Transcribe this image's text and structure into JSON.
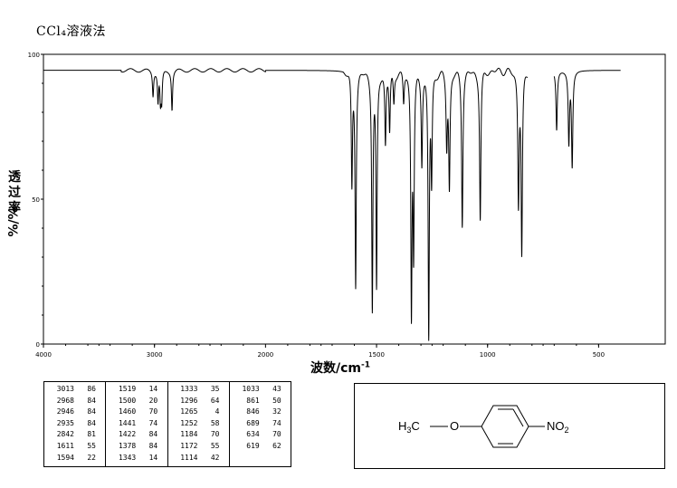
{
  "title": "CCl₄溶液法",
  "ylabel_chars": [
    "透",
    "过",
    "率"
  ],
  "ylabel_unit": "%",
  "xlabel_main": "波数/cm",
  "xlabel_sup": "-1",
  "chart_data": {
    "type": "line",
    "title": "CCl₄溶液法",
    "xlabel": "波数/cm-1",
    "ylabel": "透过率 %",
    "xlim": [
      4000,
      400
    ],
    "ylim": [
      0,
      100
    ],
    "x_ticks": [
      4000,
      3000,
      2000,
      1500,
      1000,
      500
    ],
    "y_ticks": [
      0,
      50,
      100
    ],
    "x_tick_labels": [
      "4000",
      "3000",
      "2000",
      "1500",
      "1000",
      "500"
    ],
    "y_tick_labels": [
      "0",
      "50",
      "100"
    ],
    "baseline": 94.5,
    "peaks": [
      {
        "x": 3013,
        "t": 86
      },
      {
        "x": 2968,
        "t": 84
      },
      {
        "x": 2946,
        "t": 84
      },
      {
        "x": 2935,
        "t": 84
      },
      {
        "x": 2842,
        "t": 81
      },
      {
        "x": 1611,
        "t": 55
      },
      {
        "x": 1594,
        "t": 22
      },
      {
        "x": 1519,
        "t": 14
      },
      {
        "x": 1500,
        "t": 20
      },
      {
        "x": 1460,
        "t": 70
      },
      {
        "x": 1441,
        "t": 74
      },
      {
        "x": 1422,
        "t": 84
      },
      {
        "x": 1378,
        "t": 84
      },
      {
        "x": 1343,
        "t": 14
      },
      {
        "x": 1333,
        "t": 35
      },
      {
        "x": 1296,
        "t": 64
      },
      {
        "x": 1265,
        "t": 4
      },
      {
        "x": 1252,
        "t": 58
      },
      {
        "x": 1184,
        "t": 70
      },
      {
        "x": 1172,
        "t": 55
      },
      {
        "x": 1114,
        "t": 42
      },
      {
        "x": 1033,
        "t": 43
      },
      {
        "x": 861,
        "t": 50
      },
      {
        "x": 846,
        "t": 32
      },
      {
        "x": 689,
        "t": 74
      },
      {
        "x": 634,
        "t": 70
      },
      {
        "x": 619,
        "t": 62
      }
    ]
  },
  "peak_table": [
    [
      [
        "3013",
        "86"
      ],
      [
        "2968",
        "84"
      ],
      [
        "2946",
        "84"
      ],
      [
        "2935",
        "84"
      ],
      [
        "2842",
        "81"
      ],
      [
        "1611",
        "55"
      ],
      [
        "1594",
        "22"
      ]
    ],
    [
      [
        "1519",
        "14"
      ],
      [
        "1500",
        "20"
      ],
      [
        "1460",
        "70"
      ],
      [
        "1441",
        "74"
      ],
      [
        "1422",
        "84"
      ],
      [
        "1378",
        "84"
      ],
      [
        "1343",
        "14"
      ]
    ],
    [
      [
        "1333",
        "35"
      ],
      [
        "1296",
        "64"
      ],
      [
        "1265",
        "4"
      ],
      [
        "1252",
        "58"
      ],
      [
        "1184",
        "70"
      ],
      [
        "1172",
        "55"
      ],
      [
        "1114",
        "42"
      ]
    ],
    [
      [
        "1033",
        "43"
      ],
      [
        "861",
        "50"
      ],
      [
        "846",
        "32"
      ],
      [
        "689",
        "74"
      ],
      [
        "634",
        "70"
      ],
      [
        "619",
        "62"
      ]
    ]
  ],
  "structure": {
    "left_group": "H3C",
    "h": "H",
    "sub3": "3",
    "c": "C",
    "o": "O",
    "right_group": "NO2",
    "no": "NO",
    "sub2": "2"
  }
}
